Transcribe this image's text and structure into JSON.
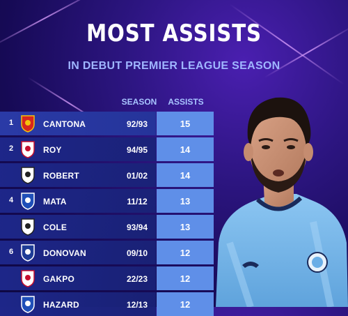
{
  "header": {
    "title": "MOST ASSISTS",
    "subtitle": "IN DEBUT PREMIER LEAGUE SEASON"
  },
  "table": {
    "columns": {
      "season": "SEASON",
      "assists": "ASSISTS"
    },
    "rows": [
      {
        "rank": "1",
        "club_icon": "man-united-leeds-crests-icon",
        "player": "CANTONA",
        "season": "92/93",
        "assists": "15"
      },
      {
        "rank": "2",
        "club_icon": "nottingham-forest-crest-icon",
        "player": "ROY",
        "season": "94/95",
        "assists": "14"
      },
      {
        "rank": "",
        "club_icon": "newcastle-crest-icon",
        "player": "ROBERT",
        "season": "01/02",
        "assists": "14"
      },
      {
        "rank": "4",
        "club_icon": "chelsea-crest-icon",
        "player": "MATA",
        "season": "11/12",
        "assists": "13"
      },
      {
        "rank": "",
        "club_icon": "newcastle-crest-icon",
        "player": "COLE",
        "season": "93/94",
        "assists": "13"
      },
      {
        "rank": "6",
        "club_icon": "everton-crest-icon",
        "player": "DONOVAN",
        "season": "09/10",
        "assists": "12"
      },
      {
        "rank": "",
        "club_icon": "liverpool-crest-icon",
        "player": "GAKPO",
        "season": "22/23",
        "assists": "12"
      },
      {
        "rank": "",
        "club_icon": "chelsea-crest-icon",
        "player": "HAZARD",
        "season": "12/13",
        "assists": "12"
      }
    ]
  },
  "colors": {
    "background": "#2c1580",
    "row_name_bg": "#25349a",
    "row_value_bg": "#5f8fe8",
    "subtitle": "#9fb6ff",
    "kit_sky_blue": "#7ab8ea"
  },
  "image": {
    "subject": "player-photo"
  }
}
